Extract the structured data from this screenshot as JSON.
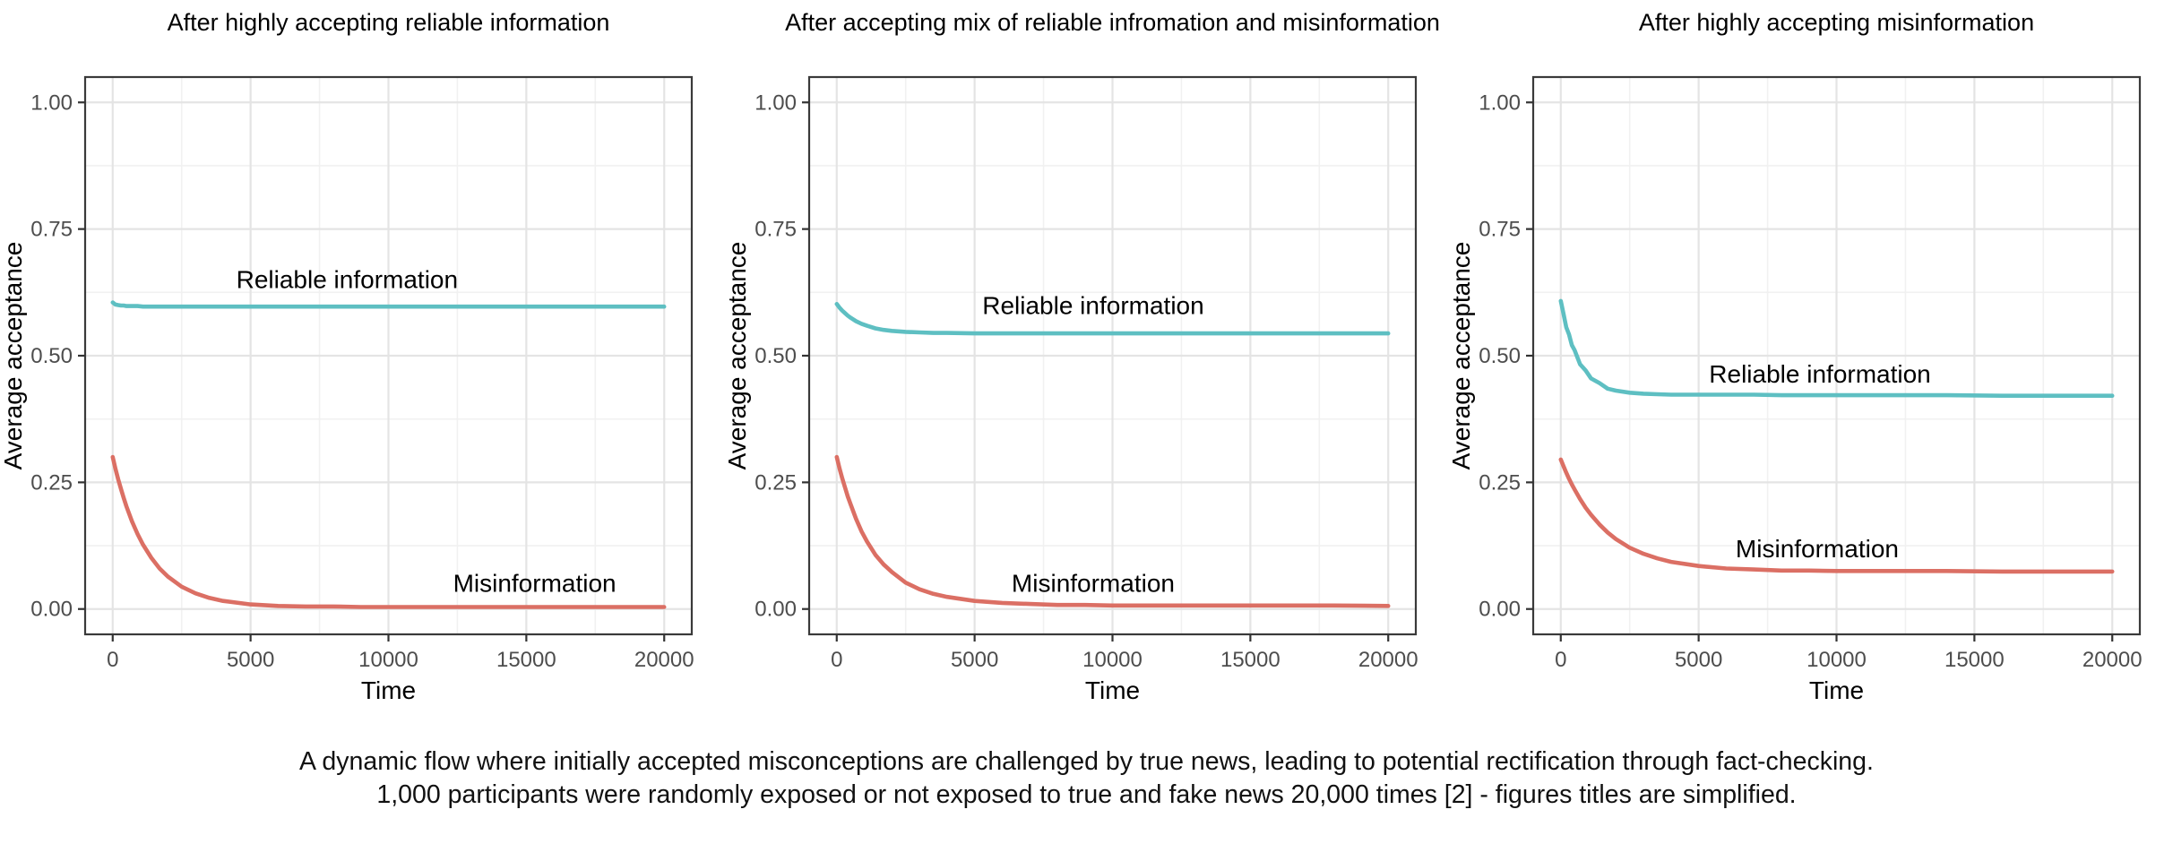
{
  "caption": {
    "line1": "A dynamic flow where initially accepted misconceptions are challenged by true news, leading to potential rectification through fact-checking.",
    "line2": "1,000 participants were randomly exposed or not exposed to true and fake news 20,000 times [2] - figures titles are simplified."
  },
  "colors": {
    "reliable": "#5ebfc2",
    "misinformation": "#db6f64",
    "grid_major": "#e4e4e4",
    "grid_minor": "#f1f1f1",
    "panel_border": "#3a3a3a",
    "tick_mark": "#333333",
    "tick_label": "#4d4d4d",
    "text": "#000000",
    "panel_background": "#ffffff"
  },
  "axes": {
    "x_label": "Time",
    "y_label": "Average acceptance",
    "x_range": [
      0,
      20000
    ],
    "y_range": [
      0,
      1
    ],
    "x_ticks": [
      0,
      5000,
      10000,
      15000,
      20000
    ],
    "x_tick_labels": [
      "0",
      "5000",
      "10000",
      "15000",
      "20000"
    ],
    "x_minor": [
      2500,
      7500,
      12500,
      17500
    ],
    "y_ticks": [
      0,
      0.25,
      0.5,
      0.75,
      1.0
    ],
    "y_tick_labels": [
      "0.00",
      "0.25",
      "0.50",
      "0.75",
      "1.00"
    ],
    "y_minor": [
      0.125,
      0.375,
      0.625,
      0.875
    ],
    "grid": true,
    "legend_position": "annotations-inside-panel"
  },
  "chart_data": [
    {
      "type": "line",
      "title": "After highly accepting reliable information",
      "xlabel": "Time",
      "ylabel": "Average acceptance",
      "xlim": [
        0,
        20000
      ],
      "ylim": [
        0,
        1
      ],
      "x": [
        0,
        100,
        200,
        300,
        400,
        500,
        700,
        900,
        1100,
        1400,
        1700,
        2000,
        2500,
        3000,
        3500,
        4000,
        5000,
        6000,
        7000,
        8000,
        9000,
        10000,
        12000,
        14000,
        16000,
        18000,
        20000
      ],
      "series": [
        {
          "name": "Reliable information",
          "color_key": "reliable",
          "values": [
            0.605,
            0.601,
            0.6,
            0.599,
            0.599,
            0.598,
            0.598,
            0.598,
            0.597,
            0.597,
            0.597,
            0.597,
            0.597,
            0.597,
            0.597,
            0.597,
            0.597,
            0.597,
            0.597,
            0.597,
            0.597,
            0.597,
            0.597,
            0.597,
            0.597,
            0.597,
            0.597
          ],
          "annotation": {
            "text": "Reliable information",
            "t": 8500,
            "v": 0.651
          }
        },
        {
          "name": "Misinformation",
          "color_key": "misinformation",
          "values": [
            0.3,
            0.277,
            0.256,
            0.237,
            0.219,
            0.202,
            0.173,
            0.148,
            0.127,
            0.101,
            0.08,
            0.064,
            0.044,
            0.031,
            0.022,
            0.016,
            0.009,
            0.006,
            0.005,
            0.005,
            0.004,
            0.004,
            0.004,
            0.004,
            0.004,
            0.004,
            0.004
          ],
          "annotation": {
            "text": "Misinformation",
            "t": 15300,
            "v": 0.052
          }
        }
      ]
    },
    {
      "type": "line",
      "title": "After accepting mix of reliable infromation and misinformation",
      "xlabel": "Time",
      "ylabel": "Average acceptance",
      "xlim": [
        0,
        20000
      ],
      "ylim": [
        0,
        1
      ],
      "x": [
        0,
        100,
        200,
        300,
        400,
        500,
        700,
        900,
        1100,
        1400,
        1700,
        2000,
        2500,
        3000,
        3500,
        4000,
        5000,
        6000,
        7000,
        8000,
        9000,
        10000,
        12000,
        14000,
        16000,
        18000,
        20000
      ],
      "series": [
        {
          "name": "Reliable information",
          "color_key": "reliable",
          "values": [
            0.602,
            0.595,
            0.589,
            0.584,
            0.579,
            0.575,
            0.568,
            0.563,
            0.559,
            0.554,
            0.551,
            0.549,
            0.547,
            0.546,
            0.545,
            0.545,
            0.544,
            0.544,
            0.544,
            0.544,
            0.544,
            0.544,
            0.544,
            0.544,
            0.544,
            0.544,
            0.544
          ],
          "annotation": {
            "text": "Reliable information",
            "t": 9300,
            "v": 0.6
          }
        },
        {
          "name": "Misinformation",
          "color_key": "misinformation",
          "values": [
            0.3,
            0.278,
            0.258,
            0.24,
            0.222,
            0.207,
            0.178,
            0.153,
            0.133,
            0.107,
            0.088,
            0.073,
            0.052,
            0.039,
            0.03,
            0.024,
            0.016,
            0.012,
            0.01,
            0.008,
            0.008,
            0.007,
            0.007,
            0.007,
            0.007,
            0.007,
            0.006
          ],
          "annotation": {
            "text": "Misinformation",
            "t": 9300,
            "v": 0.052
          }
        }
      ]
    },
    {
      "type": "line",
      "title": "After highly accepting misinformation",
      "xlabel": "Time",
      "ylabel": "Average acceptance",
      "xlim": [
        0,
        20000
      ],
      "ylim": [
        0,
        1
      ],
      "x": [
        0,
        100,
        200,
        300,
        400,
        500,
        700,
        900,
        1100,
        1400,
        1700,
        2000,
        2500,
        3000,
        3500,
        4000,
        5000,
        6000,
        7000,
        8000,
        9000,
        10000,
        12000,
        14000,
        16000,
        18000,
        20000
      ],
      "series": [
        {
          "name": "Reliable information",
          "color_key": "reliable",
          "values": [
            0.608,
            0.583,
            0.556,
            0.542,
            0.521,
            0.511,
            0.483,
            0.471,
            0.455,
            0.446,
            0.435,
            0.431,
            0.427,
            0.425,
            0.424,
            0.423,
            0.423,
            0.423,
            0.423,
            0.422,
            0.422,
            0.422,
            0.422,
            0.422,
            0.421,
            0.421,
            0.421
          ],
          "annotation": {
            "text": "Reliable information",
            "t": 9400,
            "v": 0.465
          }
        },
        {
          "name": "Misinformation",
          "color_key": "misinformation",
          "values": [
            0.295,
            0.282,
            0.269,
            0.257,
            0.246,
            0.236,
            0.217,
            0.2,
            0.186,
            0.167,
            0.151,
            0.138,
            0.121,
            0.109,
            0.1,
            0.093,
            0.085,
            0.08,
            0.078,
            0.076,
            0.076,
            0.075,
            0.075,
            0.075,
            0.074,
            0.074,
            0.074
          ],
          "annotation": {
            "text": "Misinformation",
            "t": 9300,
            "v": 0.12
          }
        }
      ]
    }
  ]
}
